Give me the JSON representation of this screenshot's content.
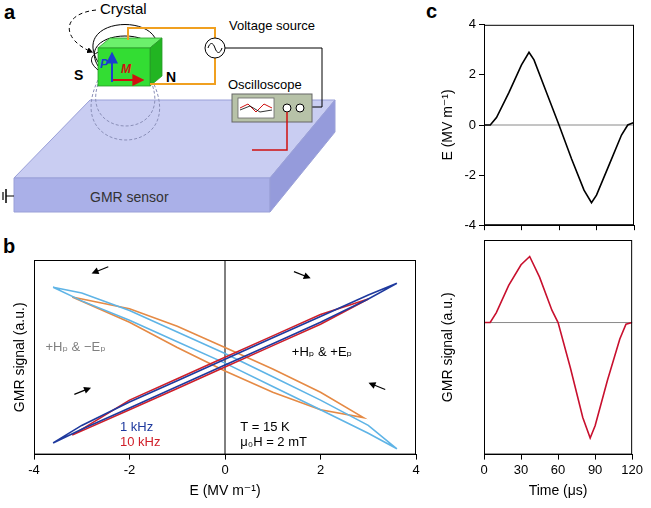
{
  "diagram": {
    "panel": "a",
    "crystal": "Crystal",
    "polarization": "P",
    "magnetization": "M",
    "south": "S",
    "north": "N",
    "voltage_source": "Voltage source",
    "oscilloscope": "Oscilloscope",
    "sensor": "GMR sensor"
  },
  "chart_data": [
    {
      "panel": "b",
      "type": "line",
      "x_label": "E (MV m⁻¹)",
      "y_label": "GMR signal (a.u.)",
      "xlim": [
        -4,
        4
      ],
      "xticks": [
        -4,
        -2,
        0,
        2,
        4
      ],
      "ylim": [
        -1,
        1
      ],
      "tick_labels": "x",
      "grid": false,
      "series": [
        {
          "name": "1 kHz",
          "color": "#1f3a9e",
          "x": [
            -3.6,
            -3,
            -2,
            -1,
            0,
            1,
            2,
            3,
            3.6,
            3,
            2,
            1,
            0,
            -1,
            -2,
            -3,
            -3.6
          ],
          "values": [
            -0.88,
            -0.74,
            -0.52,
            -0.3,
            -0.08,
            0.14,
            0.36,
            0.6,
            0.76,
            0.64,
            0.42,
            0.2,
            -0.02,
            -0.24,
            -0.46,
            -0.7,
            -0.88
          ]
        },
        {
          "name": "10 kHz",
          "color": "#d0202a",
          "x": [
            -3.2,
            -2,
            -1,
            0,
            1,
            2,
            3,
            2,
            1,
            0,
            -1,
            -2,
            -3.2
          ],
          "values": [
            -0.8,
            -0.54,
            -0.32,
            -0.1,
            0.12,
            0.34,
            0.6,
            0.44,
            0.22,
            0,
            -0.22,
            -0.44,
            -0.8
          ]
        },
        {
          "color": "#5fb4e6",
          "x": [
            -3.6,
            -3,
            -2,
            -1,
            0,
            1,
            2,
            3,
            3.6,
            3,
            2,
            1,
            0,
            -1,
            -2,
            -3,
            -3.6
          ],
          "values": [
            0.72,
            0.58,
            0.38,
            0.16,
            -0.06,
            -0.3,
            -0.54,
            -0.78,
            -0.94,
            -0.7,
            -0.44,
            -0.2,
            0.04,
            0.26,
            0.48,
            0.66,
            0.72
          ]
        },
        {
          "color": "#e58a45",
          "x": [
            -3.2,
            -2,
            -1,
            0,
            1,
            2,
            2.9,
            2,
            1,
            0,
            -1,
            -2,
            -3.2
          ],
          "values": [
            0.62,
            0.36,
            0.1,
            -0.14,
            -0.36,
            -0.54,
            -0.62,
            -0.36,
            -0.12,
            0.1,
            0.32,
            0.5,
            0.62
          ]
        }
      ],
      "annotations": [
        "+Hₚ & +Eₚ",
        "+Hₚ & −Eₚ",
        "T = 15 K",
        "μ₀H = 2 mT"
      ]
    },
    {
      "panel": "c",
      "type": "line",
      "y_label": "E (MV m⁻¹)",
      "xlim": [
        0,
        120
      ],
      "xticks": [
        0,
        30,
        60,
        90,
        120
      ],
      "ylim": [
        -4,
        4
      ],
      "yticks": [
        -4,
        -2,
        0,
        2,
        4
      ],
      "tick_labels": "y",
      "grid": false,
      "series": [
        {
          "color": "#000000",
          "x": [
            0,
            5,
            10,
            20,
            30,
            36,
            40,
            50,
            60,
            70,
            80,
            86,
            90,
            100,
            110,
            115,
            120
          ],
          "values": [
            0,
            0,
            0.3,
            1.3,
            2.4,
            2.9,
            2.6,
            1.3,
            0,
            -1.35,
            -2.6,
            -3.1,
            -2.8,
            -1.6,
            -0.4,
            0,
            0.1
          ]
        }
      ]
    },
    {
      "type": "line",
      "x_label": "Time (μs)",
      "y_label": "GMR signal (a.u.)",
      "xlim": [
        0,
        120
      ],
      "xticks": [
        0,
        30,
        60,
        90,
        120
      ],
      "ylim": [
        -1.6,
        1
      ],
      "tick_labels": "x",
      "grid": false,
      "series": [
        {
          "color": "#c8102e",
          "x": [
            0,
            5,
            10,
            20,
            30,
            37,
            45,
            55,
            60,
            70,
            80,
            86,
            90,
            100,
            110,
            115,
            120
          ],
          "values": [
            0,
            0,
            0.12,
            0.45,
            0.7,
            0.8,
            0.55,
            0.15,
            0,
            -0.55,
            -1.15,
            -1.4,
            -1.25,
            -0.7,
            -0.2,
            -0.02,
            0
          ]
        }
      ]
    }
  ]
}
